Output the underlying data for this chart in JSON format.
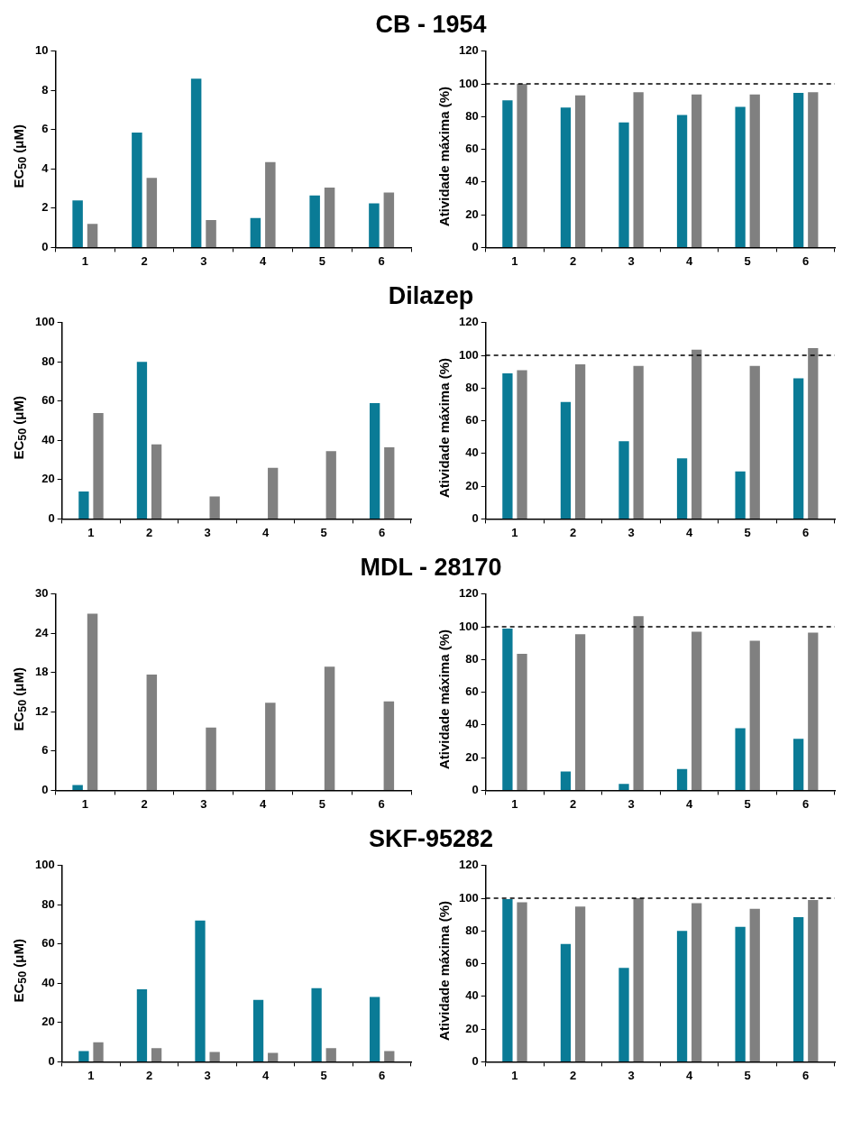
{
  "chart_data": [
    {
      "type": "bar",
      "title": "CB - 1954",
      "ylabel": "EC$_{50}$ (μM)",
      "categories": [
        "1",
        "2",
        "3",
        "4",
        "5",
        "6"
      ],
      "ylim": [
        0,
        10
      ],
      "yticks": [
        0,
        2,
        4,
        6,
        8,
        10
      ],
      "series": [
        {
          "color": "#0a7b96",
          "values": [
            2.4,
            5.85,
            8.6,
            1.5,
            2.65,
            2.25
          ]
        },
        {
          "color": "#808080",
          "values": [
            1.2,
            3.55,
            1.4,
            4.35,
            3.05,
            2.8
          ]
        }
      ]
    },
    {
      "type": "bar",
      "ylabel": "Atividade máxima (%)",
      "categories": [
        "1",
        "2",
        "3",
        "4",
        "5",
        "6"
      ],
      "ylim": [
        0,
        120
      ],
      "yticks": [
        0,
        20,
        40,
        60,
        80,
        100,
        120
      ],
      "ref_lines": [
        {
          "axis": "y",
          "value": 100,
          "line_style": "dashed",
          "color": "#000000"
        }
      ],
      "series": [
        {
          "color": "#0a7b96",
          "values": [
            90,
            85.5,
            76.5,
            81,
            86,
            94.5
          ]
        },
        {
          "color": "#808080",
          "values": [
            100,
            93,
            95,
            93.5,
            93.5,
            95
          ]
        }
      ]
    },
    {
      "type": "bar",
      "title": "Dilazep",
      "ylabel": "EC$_{50}$ (μM)",
      "categories": [
        "1",
        "2",
        "3",
        "4",
        "5",
        "6"
      ],
      "ylim": [
        0,
        100
      ],
      "yticks": [
        0,
        20,
        40,
        60,
        80,
        100
      ],
      "series": [
        {
          "color": "#0a7b96",
          "values": [
            14,
            80,
            null,
            null,
            null,
            59
          ]
        },
        {
          "color": "#808080",
          "values": [
            54,
            38,
            11.5,
            26,
            34.5,
            36.5
          ]
        }
      ]
    },
    {
      "type": "bar",
      "ylabel": "Atividade máxima (%)",
      "categories": [
        "1",
        "2",
        "3",
        "4",
        "5",
        "6"
      ],
      "ylim": [
        0,
        120
      ],
      "yticks": [
        0,
        20,
        40,
        60,
        80,
        100,
        120
      ],
      "ref_lines": [
        {
          "axis": "y",
          "value": 100,
          "line_style": "dashed",
          "color": "#000000"
        }
      ],
      "series": [
        {
          "color": "#0a7b96",
          "values": [
            89,
            71.5,
            47.5,
            37,
            29,
            86
          ]
        },
        {
          "color": "#808080",
          "values": [
            91,
            94.5,
            93.5,
            103.5,
            93.5,
            104.5
          ]
        }
      ]
    },
    {
      "type": "bar",
      "title": "MDL - 28170",
      "ylabel": "EC$_{50}$ (μM)",
      "categories": [
        "1",
        "2",
        "3",
        "4",
        "5",
        "6"
      ],
      "ylim": [
        0,
        30
      ],
      "yticks": [
        0,
        6,
        12,
        18,
        24,
        30
      ],
      "series": [
        {
          "color": "#0a7b96",
          "values": [
            0.8,
            null,
            null,
            null,
            null,
            null
          ]
        },
        {
          "color": "#808080",
          "values": [
            27,
            17.7,
            9.6,
            13.4,
            18.9,
            13.6
          ]
        }
      ]
    },
    {
      "type": "bar",
      "ylabel": "Atividade máxima (%)",
      "categories": [
        "1",
        "2",
        "3",
        "4",
        "5",
        "6"
      ],
      "ylim": [
        0,
        120
      ],
      "yticks": [
        0,
        20,
        40,
        60,
        80,
        100,
        120
      ],
      "ref_lines": [
        {
          "axis": "y",
          "value": 100,
          "line_style": "dashed",
          "color": "#000000"
        }
      ],
      "series": [
        {
          "color": "#0a7b96",
          "values": [
            99,
            11.5,
            4,
            13,
            38,
            31.5
          ]
        },
        {
          "color": "#808080",
          "values": [
            83.5,
            95.5,
            106.5,
            97,
            91.5,
            96.5
          ]
        }
      ]
    },
    {
      "type": "bar",
      "title": "SKF-95282",
      "ylabel": "EC$_{50}$ (μM)",
      "categories": [
        "1",
        "2",
        "3",
        "4",
        "5",
        "6"
      ],
      "ylim": [
        0,
        100
      ],
      "yticks": [
        0,
        20,
        40,
        60,
        80,
        100
      ],
      "series": [
        {
          "color": "#0a7b96",
          "values": [
            5.5,
            37,
            72,
            31.5,
            37.5,
            33
          ]
        },
        {
          "color": "#808080",
          "values": [
            10,
            7,
            5,
            4.5,
            7,
            5.5
          ]
        }
      ]
    },
    {
      "type": "bar",
      "ylabel": "Atividade máxima (%)",
      "categories": [
        "1",
        "2",
        "3",
        "4",
        "5",
        "6"
      ],
      "ylim": [
        0,
        120
      ],
      "yticks": [
        0,
        20,
        40,
        60,
        80,
        100,
        120
      ],
      "ref_lines": [
        {
          "axis": "y",
          "value": 100,
          "line_style": "dashed",
          "color": "#000000"
        }
      ],
      "series": [
        {
          "color": "#0a7b96",
          "values": [
            99.5,
            72,
            57.5,
            80,
            82.5,
            88.5
          ]
        },
        {
          "color": "#808080",
          "values": [
            97.5,
            95,
            100,
            97,
            93.5,
            99
          ]
        }
      ]
    }
  ]
}
